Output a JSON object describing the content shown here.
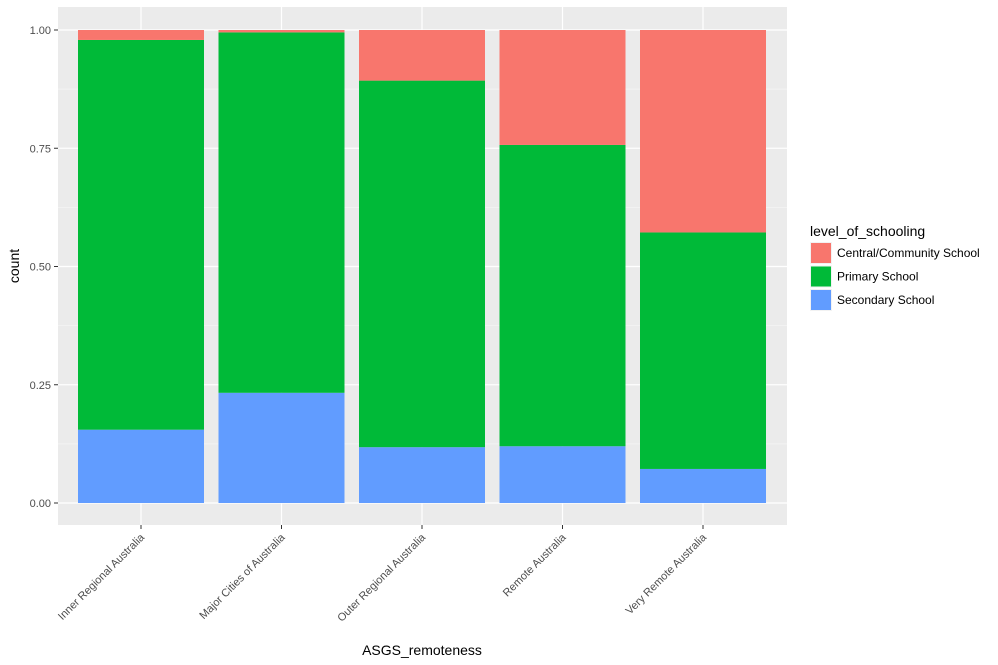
{
  "chart_data": {
    "type": "bar",
    "stacked": true,
    "xlabel": "ASGS_remoteness",
    "ylabel": "count",
    "ylim": [
      0,
      1
    ],
    "yticks": [
      "0.00",
      "0.25",
      "0.50",
      "0.75",
      "1.00"
    ],
    "categories": [
      "Inner Regional Australia",
      "Major Cities of Australia",
      "Outer Regional Australia",
      "Remote Australia",
      "Very Remote Australia"
    ],
    "legend": {
      "title": "level_of_schooling",
      "placement": "right"
    },
    "grid": true,
    "background": "#ebebeb",
    "series": [
      {
        "name": "Secondary School",
        "color": "#619cff",
        "values": [
          0.155,
          0.233,
          0.118,
          0.12,
          0.072
        ]
      },
      {
        "name": "Primary School",
        "color": "#00ba38",
        "values": [
          0.824,
          0.762,
          0.775,
          0.637,
          0.5
        ]
      },
      {
        "name": "Central/Community School",
        "color": "#f8766d",
        "values": [
          0.021,
          0.005,
          0.107,
          0.243,
          0.428
        ]
      }
    ],
    "legend_order": [
      "Central/Community School",
      "Primary School",
      "Secondary School"
    ]
  }
}
